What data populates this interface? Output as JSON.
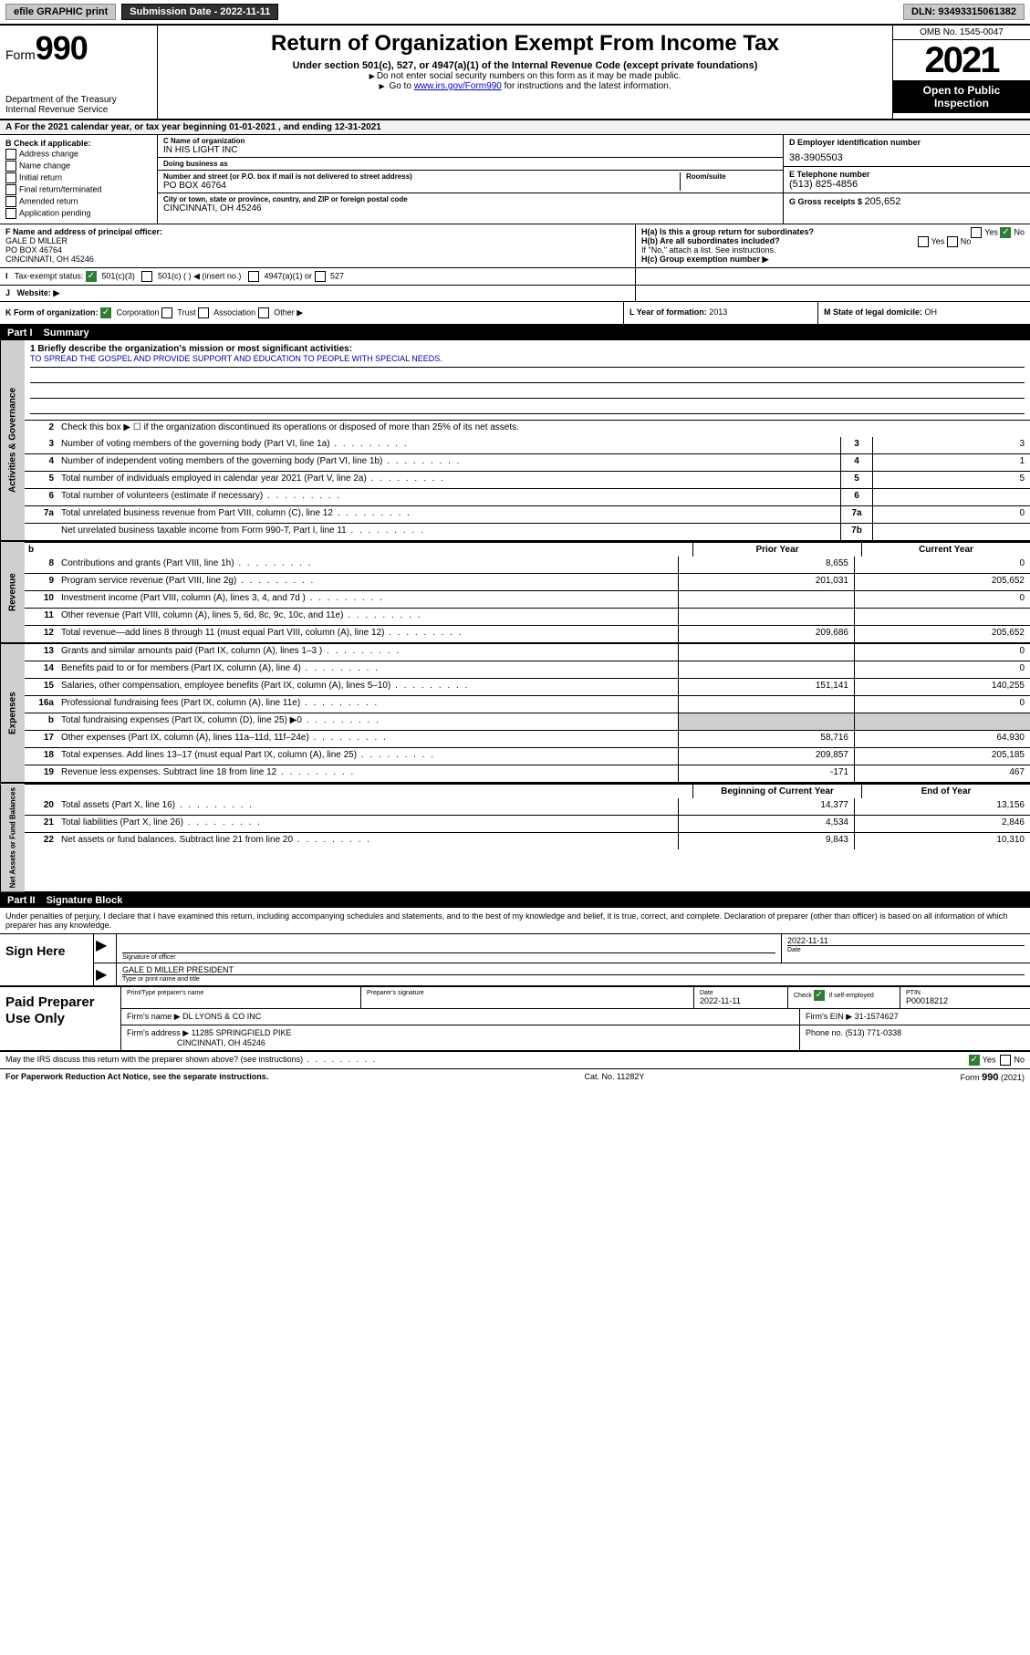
{
  "colors": {
    "black": "#000000",
    "white": "#ffffff",
    "shade": "#cfcfcf",
    "btn_gray": "#c8c8c8",
    "btn_dark": "#303030",
    "link": "#0000cc",
    "check_green": "#2e7d32"
  },
  "topbar": {
    "efile": "efile GRAPHIC print",
    "submission_label": "Submission Date",
    "submission_date": "2022-11-11",
    "dln_label": "DLN:",
    "dln": "93493315061382"
  },
  "header": {
    "form_prefix": "Form",
    "form_number": "990",
    "title": "Return of Organization Exempt From Income Tax",
    "subtitle": "Under section 501(c), 527, or 4947(a)(1) of the Internal Revenue Code (except private foundations)",
    "note1": "Do not enter social security numbers on this form as it may be made public.",
    "note2_pre": "Go to ",
    "note2_link": "www.irs.gov/Form990",
    "note2_post": " for instructions and the latest information.",
    "dept": "Department of the Treasury",
    "irs": "Internal Revenue Service",
    "omb": "OMB No. 1545-0047",
    "year": "2021",
    "open": "Open to Public Inspection"
  },
  "row_a": {
    "text": "For the 2021 calendar year, or tax year beginning 01-01-2021   , and ending 12-31-2021"
  },
  "col_b": {
    "header": "B Check if applicable:",
    "items": [
      "Address change",
      "Name change",
      "Initial return",
      "Final return/terminated",
      "Amended return",
      "Application pending"
    ]
  },
  "col_c": {
    "name_label": "C Name of organization",
    "name": "IN HIS LIGHT INC",
    "dba_label": "Doing business as",
    "dba": "",
    "addr_label": "Number and street (or P.O. box if mail is not delivered to street address)",
    "room_label": "Room/suite",
    "addr": "PO BOX 46764",
    "city_label": "City or town, state or province, country, and ZIP or foreign postal code",
    "city": "CINCINNATI, OH  45246"
  },
  "col_d": {
    "ein_label": "D Employer identification number",
    "ein": "38-3905503",
    "phone_label": "E Telephone number",
    "phone": "(513) 825-4856",
    "gross_label": "G Gross receipts $",
    "gross": "205,652"
  },
  "row_f": {
    "label": "F Name and address of principal officer:",
    "name": "GALE D MILLER",
    "addr1": "PO BOX 46764",
    "addr2": "CINCINNATI, OH  45246"
  },
  "row_h": {
    "ha": "H(a)  Is this a group return for subordinates?",
    "hb": "H(b)  Are all subordinates included?",
    "hb_note": "If \"No,\" attach a list. See instructions.",
    "hc": "H(c)  Group exemption number ▶",
    "yes": "Yes",
    "no": "No"
  },
  "row_i": {
    "label": "Tax-exempt status:",
    "o1": "501(c)(3)",
    "o2": "501(c) (  ) ◀ (insert no.)",
    "o3": "4947(a)(1) or",
    "o4": "527"
  },
  "row_j": {
    "label": "Website: ▶"
  },
  "row_k": {
    "label": "K Form of organization:",
    "opts": [
      "Corporation",
      "Trust",
      "Association",
      "Other ▶"
    ]
  },
  "row_l": {
    "label": "L Year of formation:",
    "val": "2013"
  },
  "row_m": {
    "label": "M State of legal domicile:",
    "val": "OH"
  },
  "part1": {
    "label": "Part I",
    "title": "Summary"
  },
  "mission": {
    "line1_label": "1   Briefly describe the organization's mission or most significant activities:",
    "text": "TO SPREAD THE GOSPEL AND PROVIDE SUPPORT AND EDUCATION TO PEOPLE WITH SPECIAL NEEDS."
  },
  "governance": {
    "side": "Activities & Governance",
    "line2": "Check this box ▶ ☐  if the organization discontinued its operations or disposed of more than 25% of its net assets.",
    "rows": [
      {
        "n": "3",
        "desc": "Number of voting members of the governing body (Part VI, line 1a)",
        "box": "3",
        "val": "3"
      },
      {
        "n": "4",
        "desc": "Number of independent voting members of the governing body (Part VI, line 1b)",
        "box": "4",
        "val": "1"
      },
      {
        "n": "5",
        "desc": "Total number of individuals employed in calendar year 2021 (Part V, line 2a)",
        "box": "5",
        "val": "5"
      },
      {
        "n": "6",
        "desc": "Total number of volunteers (estimate if necessary)",
        "box": "6",
        "val": ""
      },
      {
        "n": "7a",
        "desc": "Total unrelated business revenue from Part VIII, column (C), line 12",
        "box": "7a",
        "val": "0"
      },
      {
        "n": "",
        "desc": "Net unrelated business taxable income from Form 990-T, Part I, line 11",
        "box": "7b",
        "val": ""
      }
    ]
  },
  "col_hdr": {
    "b_short": "b",
    "prior": "Prior Year",
    "current": "Current Year"
  },
  "revenue": {
    "side": "Revenue",
    "rows": [
      {
        "n": "8",
        "desc": "Contributions and grants (Part VIII, line 1h)",
        "py": "8,655",
        "cy": "0"
      },
      {
        "n": "9",
        "desc": "Program service revenue (Part VIII, line 2g)",
        "py": "201,031",
        "cy": "205,652"
      },
      {
        "n": "10",
        "desc": "Investment income (Part VIII, column (A), lines 3, 4, and 7d )",
        "py": "",
        "cy": "0"
      },
      {
        "n": "11",
        "desc": "Other revenue (Part VIII, column (A), lines 5, 6d, 8c, 9c, 10c, and 11e)",
        "py": "",
        "cy": ""
      },
      {
        "n": "12",
        "desc": "Total revenue—add lines 8 through 11 (must equal Part VIII, column (A), line 12)",
        "py": "209,686",
        "cy": "205,652"
      }
    ]
  },
  "expenses": {
    "side": "Expenses",
    "rows": [
      {
        "n": "13",
        "desc": "Grants and similar amounts paid (Part IX, column (A), lines 1–3 )",
        "py": "",
        "cy": "0"
      },
      {
        "n": "14",
        "desc": "Benefits paid to or for members (Part IX, column (A), line 4)",
        "py": "",
        "cy": "0"
      },
      {
        "n": "15",
        "desc": "Salaries, other compensation, employee benefits (Part IX, column (A), lines 5–10)",
        "py": "151,141",
        "cy": "140,255"
      },
      {
        "n": "16a",
        "desc": "Professional fundraising fees (Part IX, column (A), line 11e)",
        "py": "",
        "cy": "0"
      },
      {
        "n": "b",
        "desc": "Total fundraising expenses (Part IX, column (D), line 25) ▶0",
        "py": "shade",
        "cy": "shade"
      },
      {
        "n": "17",
        "desc": "Other expenses (Part IX, column (A), lines 11a–11d, 11f–24e)",
        "py": "58,716",
        "cy": "64,930"
      },
      {
        "n": "18",
        "desc": "Total expenses. Add lines 13–17 (must equal Part IX, column (A), line 25)",
        "py": "209,857",
        "cy": "205,185"
      },
      {
        "n": "19",
        "desc": "Revenue less expenses. Subtract line 18 from line 12",
        "py": "-171",
        "cy": "467"
      }
    ]
  },
  "netassets": {
    "side": "Net Assets or Fund Balances",
    "hdr_begin": "Beginning of Current Year",
    "hdr_end": "End of Year",
    "rows": [
      {
        "n": "20",
        "desc": "Total assets (Part X, line 16)",
        "py": "14,377",
        "cy": "13,156"
      },
      {
        "n": "21",
        "desc": "Total liabilities (Part X, line 26)",
        "py": "4,534",
        "cy": "2,846"
      },
      {
        "n": "22",
        "desc": "Net assets or fund balances. Subtract line 21 from line 20",
        "py": "9,843",
        "cy": "10,310"
      }
    ]
  },
  "part2": {
    "label": "Part II",
    "title": "Signature Block"
  },
  "sig_intro": "Under penalties of perjury, I declare that I have examined this return, including accompanying schedules and statements, and to the best of my knowledge and belief, it is true, correct, and complete. Declaration of preparer (other than officer) is based on all information of which preparer has any knowledge.",
  "sign_here": {
    "label": "Sign Here",
    "sig_label": "Signature of officer",
    "date_label": "Date",
    "date": "2022-11-11",
    "name": "GALE D MILLER  PRESIDENT",
    "name_label": "Type or print name and title"
  },
  "paid": {
    "label": "Paid Preparer Use Only",
    "h1": "Print/Type preparer's name",
    "h2": "Preparer's signature",
    "h3": "Date",
    "h3v": "2022-11-11",
    "h4": "Check ☑ if self-employed",
    "h5": "PTIN",
    "h5v": "P00018212",
    "firm_name_label": "Firm's name    ▶",
    "firm_name": "DL LYONS & CO INC",
    "firm_ein_label": "Firm's EIN ▶",
    "firm_ein": "31-1574627",
    "firm_addr_label": "Firm's address ▶",
    "firm_addr1": "11285 SPRINGFIELD PIKE",
    "firm_addr2": "CINCINNATI, OH  45246",
    "phone_label": "Phone no.",
    "phone": "(513) 771-0338"
  },
  "footer": {
    "discuss": "May the IRS discuss this return with the preparer shown above? (see instructions)",
    "yes": "Yes",
    "no": "No",
    "paperwork": "For Paperwork Reduction Act Notice, see the separate instructions.",
    "cat": "Cat. No. 11282Y",
    "form": "Form 990 (2021)"
  }
}
